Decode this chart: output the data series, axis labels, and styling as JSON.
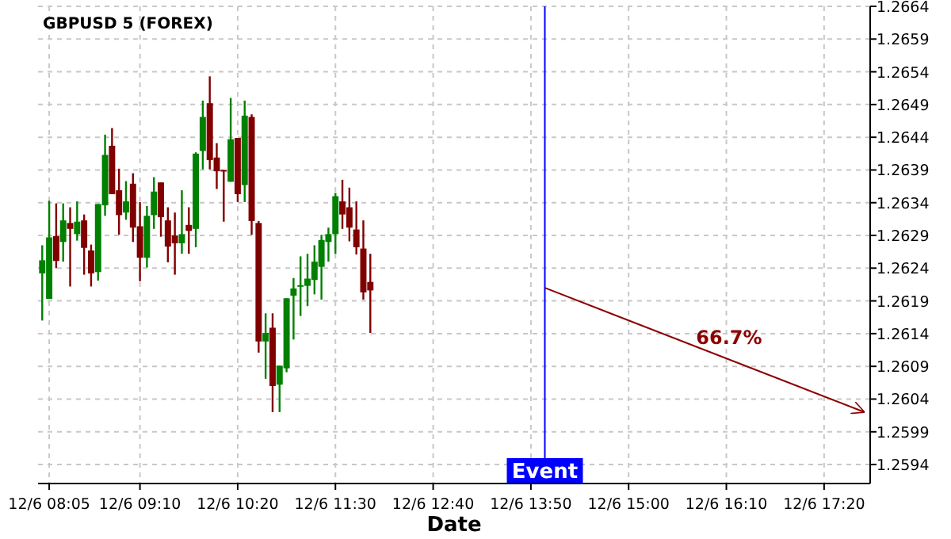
{
  "chart_data": {
    "type": "candlestick",
    "title": "GBPUSD 5 (FOREX)",
    "xlabel": "Date",
    "x": [
      "--12-06T08:00",
      "--12-06T08:05",
      "--12-06T08:10",
      "--12-06T08:15",
      "--12-06T08:20",
      "--12-06T08:25",
      "--12-06T08:30",
      "--12-06T08:35",
      "--12-06T08:40",
      "--12-06T08:45",
      "--12-06T08:50",
      "--12-06T08:55",
      "--12-06T09:00",
      "--12-06T09:05",
      "--12-06T09:10",
      "--12-06T09:15",
      "--12-06T09:20",
      "--12-06T09:25",
      "--12-06T09:30",
      "--12-06T09:35",
      "--12-06T09:40",
      "--12-06T09:45",
      "--12-06T09:50",
      "--12-06T09:55",
      "--12-06T10:00",
      "--12-06T10:05",
      "--12-06T10:10",
      "--12-06T10:15",
      "--12-06T10:20",
      "--12-06T10:25",
      "--12-06T10:30",
      "--12-06T10:35",
      "--12-06T10:40",
      "--12-06T10:45",
      "--12-06T10:50",
      "--12-06T10:55",
      "--12-06T11:00",
      "--12-06T11:05",
      "--12-06T11:10",
      "--12-06T11:15",
      "--12-06T11:20",
      "--12-06T11:25",
      "--12-06T11:30",
      "--12-06T11:35",
      "--12-06T11:40",
      "--12-06T11:45",
      "--12-06T11:50",
      "--12-06T11:55"
    ],
    "ohlc": [
      [
        1.26232,
        1.26275,
        1.2616,
        1.26252
      ],
      [
        1.26193,
        1.26343,
        1.26193,
        1.26287
      ],
      [
        1.26289,
        1.26339,
        1.2624,
        1.26251
      ],
      [
        1.2628,
        1.26339,
        1.2625,
        1.26313
      ],
      [
        1.26309,
        1.26333,
        1.26212,
        1.263
      ],
      [
        1.26292,
        1.26342,
        1.26282,
        1.26311
      ],
      [
        1.26313,
        1.26322,
        1.2623,
        1.26271
      ],
      [
        1.26267,
        1.26276,
        1.26212,
        1.26232
      ],
      [
        1.26234,
        1.26338,
        1.26221,
        1.26338
      ],
      [
        1.26336,
        1.26444,
        1.2632,
        1.26413
      ],
      [
        1.26427,
        1.26454,
        1.26353,
        1.26353
      ],
      [
        1.26359,
        1.26392,
        1.26291,
        1.26321
      ],
      [
        1.26325,
        1.26373,
        1.26314,
        1.26342
      ],
      [
        1.26369,
        1.26385,
        1.2628,
        1.26302
      ],
      [
        1.26304,
        1.26341,
        1.2622,
        1.26256
      ],
      [
        1.26256,
        1.26335,
        1.26241,
        1.2632
      ],
      [
        1.26321,
        1.26379,
        1.263,
        1.26357
      ],
      [
        1.26371,
        1.26371,
        1.26288,
        1.26318
      ],
      [
        1.26313,
        1.26333,
        1.26249,
        1.26273
      ],
      [
        1.2629,
        1.26325,
        1.2623,
        1.26278
      ],
      [
        1.26278,
        1.26359,
        1.26262,
        1.26292
      ],
      [
        1.26306,
        1.26333,
        1.26262,
        1.26297
      ],
      [
        1.263,
        1.26417,
        1.26272,
        1.26415
      ],
      [
        1.26419,
        1.26496,
        1.26391,
        1.26471
      ],
      [
        1.26492,
        1.26533,
        1.26391,
        1.26405
      ],
      [
        1.26409,
        1.26431,
        1.26361,
        1.26388
      ],
      [
        1.2639,
        1.2639,
        1.26311,
        1.26388
      ],
      [
        1.26372,
        1.265,
        1.26372,
        1.26437
      ],
      [
        1.26439,
        1.26439,
        1.26341,
        1.26353
      ],
      [
        1.26367,
        1.26496,
        1.26341,
        1.26473
      ],
      [
        1.26471,
        1.26475,
        1.26291,
        1.26312
      ],
      [
        1.26309,
        1.26312,
        1.26111,
        1.26128
      ],
      [
        1.26128,
        1.26171,
        1.26071,
        1.26141
      ],
      [
        1.26149,
        1.26171,
        1.2602,
        1.2606
      ],
      [
        1.26062,
        1.26091,
        1.2602,
        1.26091
      ],
      [
        1.26087,
        1.26194,
        1.26081,
        1.26194
      ],
      [
        1.26198,
        1.26225,
        1.26131,
        1.26209
      ],
      [
        1.26212,
        1.26258,
        1.26167,
        1.26214
      ],
      [
        1.26213,
        1.26262,
        1.26182,
        1.26224
      ],
      [
        1.26222,
        1.26275,
        1.262,
        1.2625
      ],
      [
        1.26242,
        1.26291,
        1.26192,
        1.26283
      ],
      [
        1.2628,
        1.26302,
        1.2625,
        1.26292
      ],
      [
        1.26292,
        1.26355,
        1.26262,
        1.2635
      ],
      [
        1.26342,
        1.26375,
        1.263,
        1.26322
      ],
      [
        1.26333,
        1.26363,
        1.26281,
        1.26302
      ],
      [
        1.26299,
        1.26342,
        1.26261,
        1.26272
      ],
      [
        1.2627,
        1.26313,
        1.26192,
        1.26203
      ],
      [
        1.26219,
        1.26262,
        1.26141,
        1.26206
      ]
    ],
    "colors": [
      "#008000",
      "#008000",
      "#800000",
      "#008000",
      "#800000",
      "#008000",
      "#800000",
      "#800000",
      "#008000",
      "#008000",
      "#800000",
      "#800000",
      "#008000",
      "#800000",
      "#800000",
      "#008000",
      "#008000",
      "#800000",
      "#800000",
      "#800000",
      "#008000",
      "#800000",
      "#008000",
      "#008000",
      "#800000",
      "#800000",
      "#800000",
      "#008000",
      "#800000",
      "#008000",
      "#800000",
      "#800000",
      "#008000",
      "#800000",
      "#008000",
      "#008000",
      "#008000",
      "#008000",
      "#008000",
      "#008000",
      "#008000",
      "#008000",
      "#008000",
      "#800000",
      "#800000",
      "#800000",
      "#800000",
      "#800000"
    ],
    "series": [
      {
        "type": "line",
        "color": "#8b0000",
        "x": [
          "--12-06T14:00",
          "--12-06T17:49"
        ],
        "values": [
          1.2621,
          1.2602
        ]
      }
    ],
    "annotations": [
      "66.7%"
    ],
    "ref_lines": [
      {
        "axis": "x",
        "value": "--12-06T14:00",
        "label": "Event",
        "color": "#0000ff"
      }
    ],
    "xlim": [
      "--12-06T07:57",
      "--12-06T17:53"
    ],
    "xticks": [
      {
        "value": "--12-06T08:05",
        "label": "12/6 08:05"
      },
      {
        "value": "--12-06T09:10",
        "label": "12/6 09:10"
      },
      {
        "value": "--12-06T10:20",
        "label": "12/6 10:20"
      },
      {
        "value": "--12-06T11:30",
        "label": "12/6 11:30"
      },
      {
        "value": "--12-06T12:40",
        "label": "12/6 12:40"
      },
      {
        "value": "--12-06T13:50",
        "label": "12/6 13:50"
      },
      {
        "value": "--12-06T15:00",
        "label": "12/6 15:00"
      },
      {
        "value": "--12-06T16:10",
        "label": "12/6 16:10"
      },
      {
        "value": "--12-06T17:20",
        "label": "12/6 17:20"
      }
    ],
    "ylim": [
      1.25911,
      1.2664
    ],
    "yticks": [
      1.2594,
      1.2599,
      1.2604,
      1.2609,
      1.2614,
      1.2619,
      1.2624,
      1.2629,
      1.2634,
      1.2639,
      1.2644,
      1.2649,
      1.2654,
      1.2659,
      1.2664
    ],
    "grid": true
  }
}
